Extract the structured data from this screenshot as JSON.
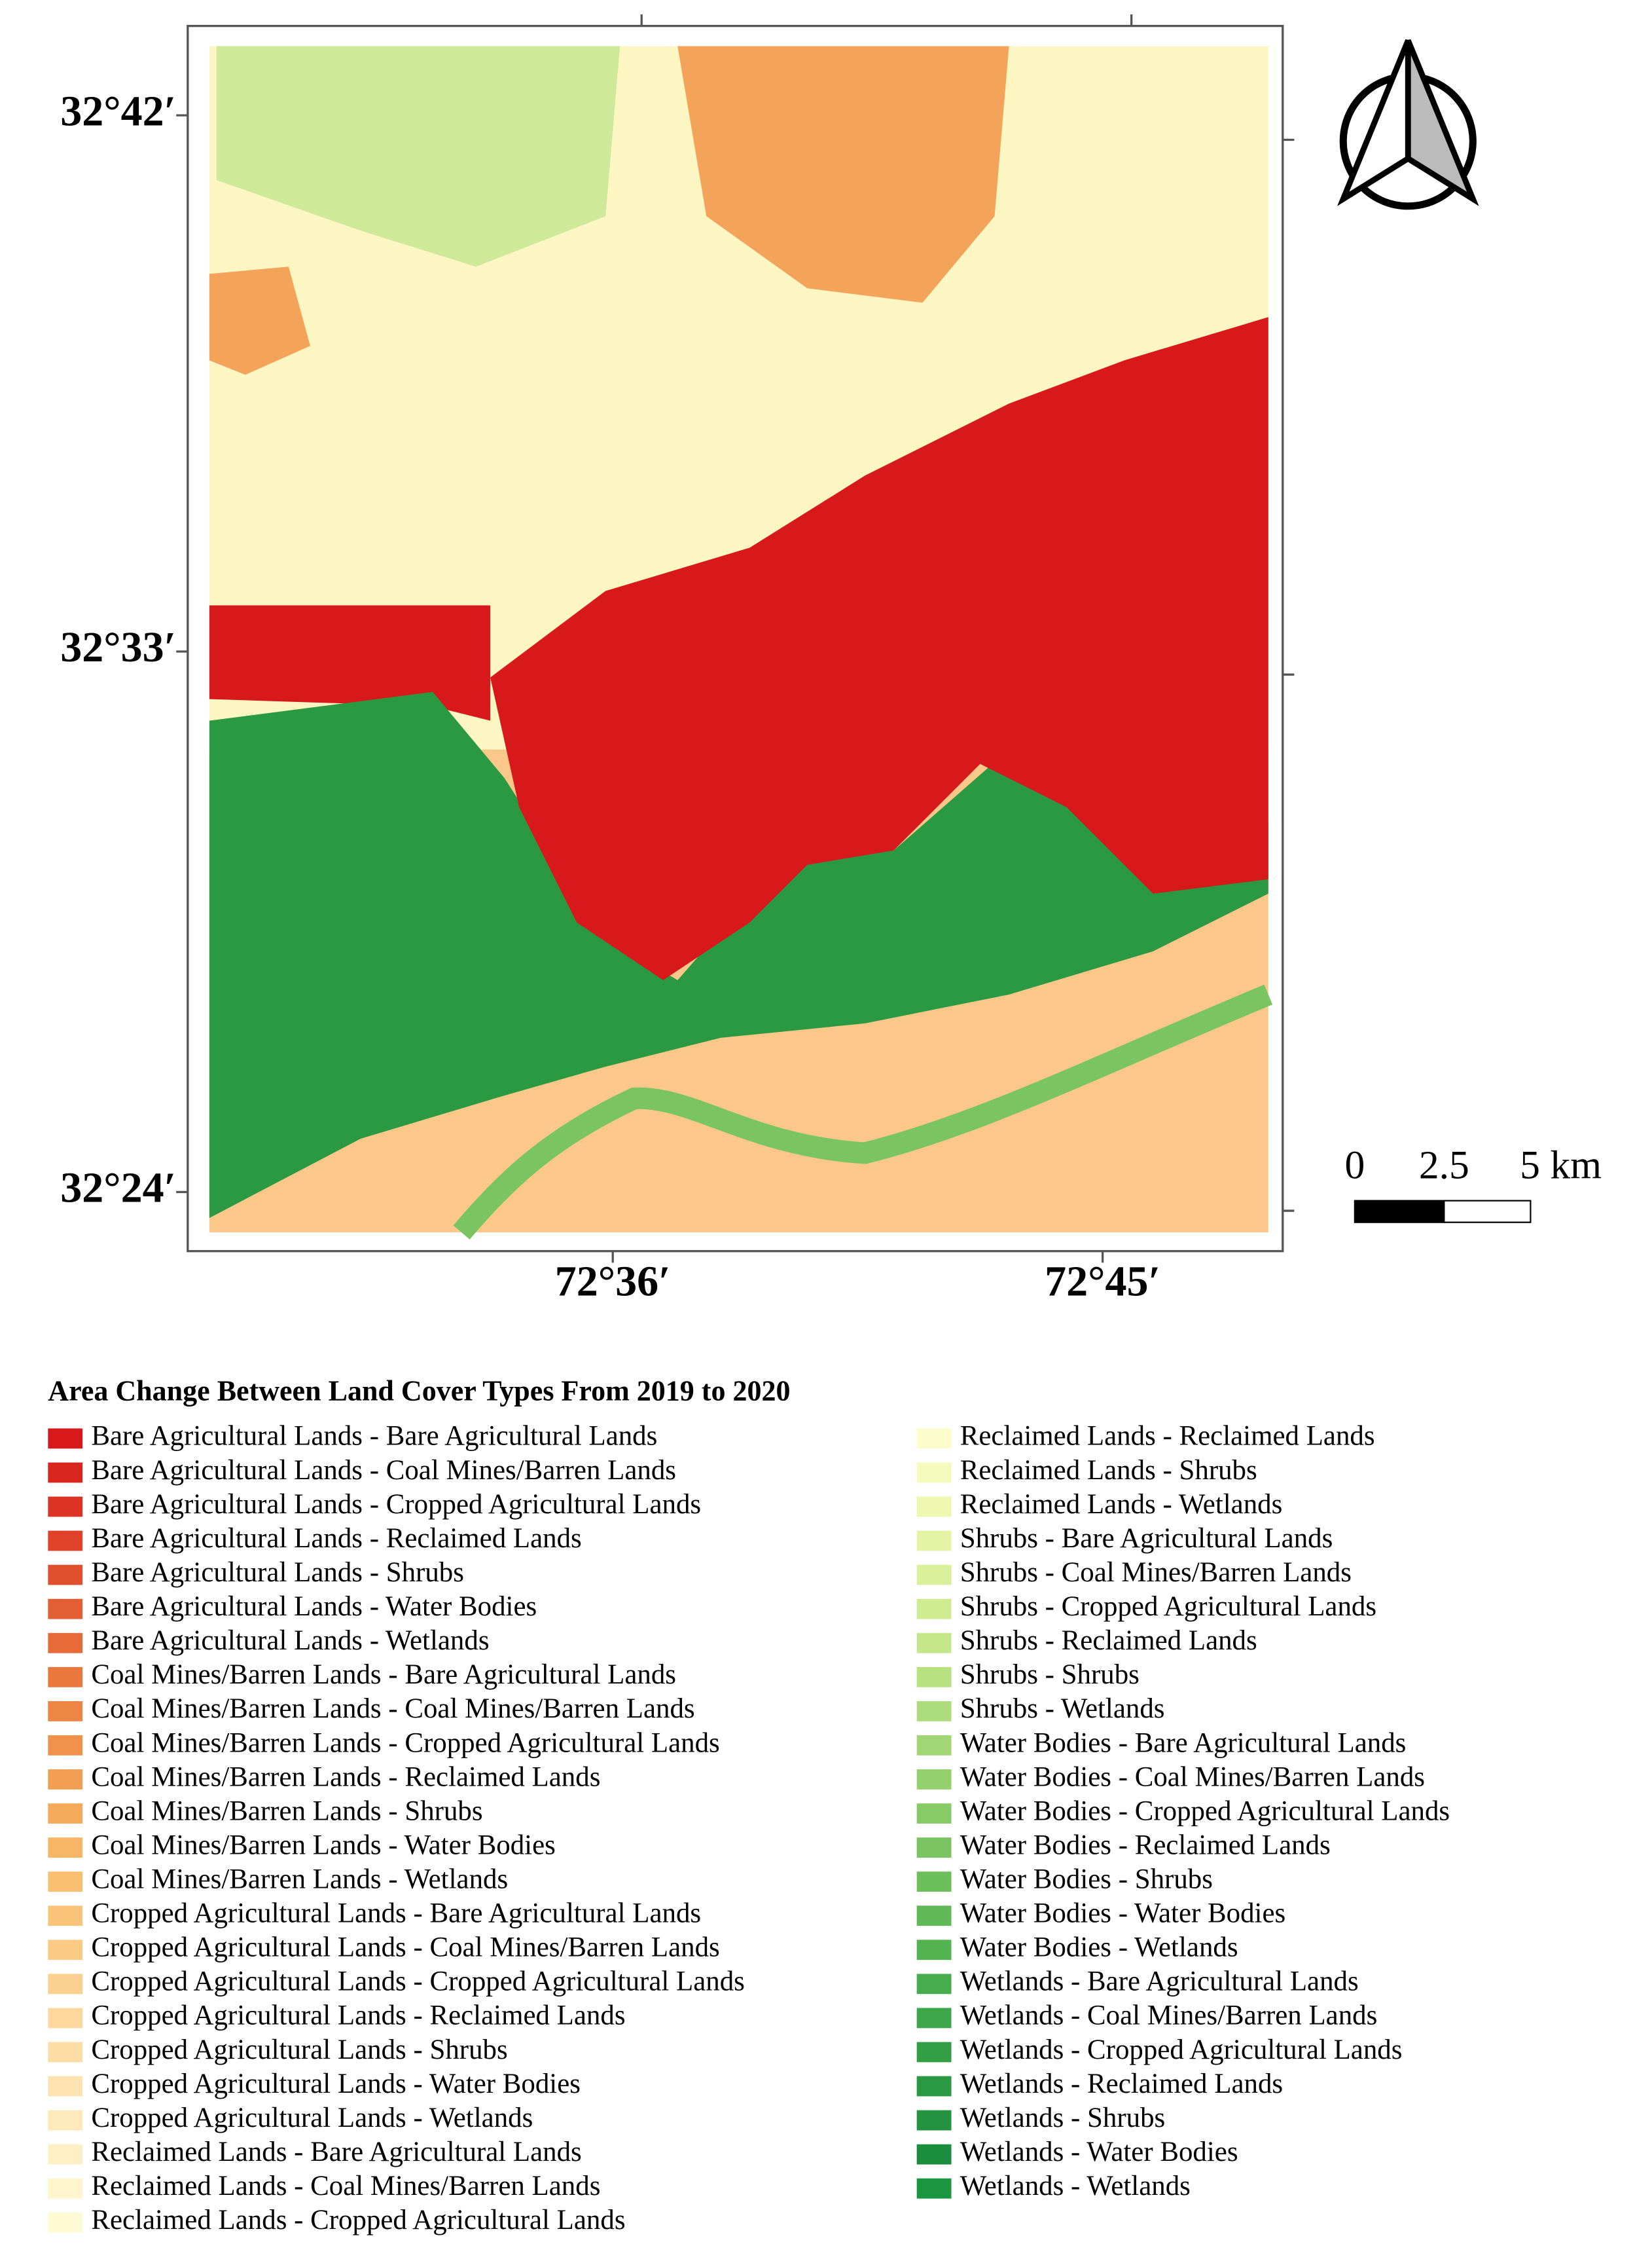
{
  "map": {
    "latitude_labels": [
      "32°42′",
      "32°33′",
      "32°24′"
    ],
    "longitude_labels": [
      "72°36′",
      "72°45′"
    ],
    "scale_bar": [
      "0",
      "2.5",
      "5 km"
    ]
  },
  "legend": {
    "title": "Area Change Between Land Cover Types From 2019 to 2020",
    "items": [
      {
        "label": "Bare Agricultural Lands - Bare Agricultural Lands",
        "color": "#d7191c"
      },
      {
        "label": "Bare Agricultural Lands - Coal Mines/Barren Lands",
        "color": "#d9261f"
      },
      {
        "label": "Bare Agricultural Lands - Cropped Agricultural Lands",
        "color": "#dc3324"
      },
      {
        "label": "Bare Agricultural Lands - Reclaimed Lands",
        "color": "#df4229"
      },
      {
        "label": "Bare Agricultural Lands - Shrubs",
        "color": "#e1502e"
      },
      {
        "label": "Bare Agricultural Lands - Water Bodies",
        "color": "#e45e33"
      },
      {
        "label": "Bare Agricultural Lands - Wetlands",
        "color": "#e76b39"
      },
      {
        "label": "Coal Mines/Barren Lands - Bare Agricultural Lands",
        "color": "#ea783e"
      },
      {
        "label": "Coal Mines/Barren Lands - Coal Mines/Barren Lands",
        "color": "#ed8545"
      },
      {
        "label": "Coal Mines/Barren Lands - Cropped Agricultural Lands",
        "color": "#f0924c"
      },
      {
        "label": "Coal Mines/Barren Lands - Reclaimed Lands",
        "color": "#f39f53"
      },
      {
        "label": "Coal Mines/Barren Lands - Shrubs",
        "color": "#f5ab5b"
      },
      {
        "label": "Coal Mines/Barren Lands - Water Bodies",
        "color": "#f7b565"
      },
      {
        "label": "Coal Mines/Barren Lands - Wetlands",
        "color": "#f9be6f"
      },
      {
        "label": "Cropped Agricultural Lands - Bare Agricultural Lands",
        "color": "#fac57a"
      },
      {
        "label": "Cropped Agricultural Lands - Coal Mines/Barren Lands",
        "color": "#fbcb85"
      },
      {
        "label": "Cropped Agricultural Lands - Cropped Agricultural Lands",
        "color": "#fcd190"
      },
      {
        "label": "Cropped Agricultural Lands - Reclaimed Lands",
        "color": "#fdd79b"
      },
      {
        "label": "Cropped Agricultural Lands - Shrubs",
        "color": "#fddda6"
      },
      {
        "label": "Cropped Agricultural Lands - Water Bodies",
        "color": "#fee3b0"
      },
      {
        "label": "Cropped Agricultural Lands - Wetlands",
        "color": "#fee9ba"
      },
      {
        "label": "Reclaimed Lands - Bare Agricultural Lands",
        "color": "#fef0c4"
      },
      {
        "label": "Reclaimed Lands - Coal Mines/Barren Lands",
        "color": "#fef5cc"
      },
      {
        "label": "Reclaimed Lands - Cropped Agricultural Lands",
        "color": "#fefad4"
      },
      {
        "label": "Reclaimed Lands - Reclaimed Lands",
        "color": "#fcfdca"
      },
      {
        "label": "Reclaimed Lands - Shrubs",
        "color": "#f5fbbd"
      },
      {
        "label": "Reclaimed Lands - Wetlands",
        "color": "#eef8b0"
      },
      {
        "label": "Shrubs - Bare Agricultural Lands",
        "color": "#e4f4a4"
      },
      {
        "label": "Shrubs - Coal Mines/Barren Lands",
        "color": "#daf09a"
      },
      {
        "label": "Shrubs - Cropped Agricultural Lands",
        "color": "#cfec91"
      },
      {
        "label": "Shrubs - Reclaimed Lands",
        "color": "#c4e789"
      },
      {
        "label": "Shrubs - Shrubs",
        "color": "#b8e282"
      },
      {
        "label": "Shrubs - Wetlands",
        "color": "#acdc7b"
      },
      {
        "label": "Water Bodies - Bare Agricultural Lands",
        "color": "#a0d774"
      },
      {
        "label": "Water Bodies - Coal Mines/Barren Lands",
        "color": "#94d16d"
      },
      {
        "label": "Water Bodies - Cropped Agricultural Lands",
        "color": "#87cb67"
      },
      {
        "label": "Water Bodies - Reclaimed Lands",
        "color": "#7ac561"
      },
      {
        "label": "Water Bodies - Shrubs",
        "color": "#6dbf5b"
      },
      {
        "label": "Water Bodies - Water Bodies",
        "color": "#60b956"
      },
      {
        "label": "Water Bodies - Wetlands",
        "color": "#53b351"
      },
      {
        "label": "Wetlands - Bare Agricultural Lands",
        "color": "#47ac4d"
      },
      {
        "label": "Wetlands - Coal Mines/Barren Lands",
        "color": "#3ca649"
      },
      {
        "label": "Wetlands - Cropped Agricultural Lands",
        "color": "#339f45"
      },
      {
        "label": "Wetlands - Reclaimed Lands",
        "color": "#2a9942"
      },
      {
        "label": "Wetlands - Shrubs",
        "color": "#23933f"
      },
      {
        "label": "Wetlands - Water Bodies",
        "color": "#1c8d3c"
      },
      {
        "label": "Wetlands - Wetlands",
        "color": "#1a9641"
      }
    ]
  }
}
